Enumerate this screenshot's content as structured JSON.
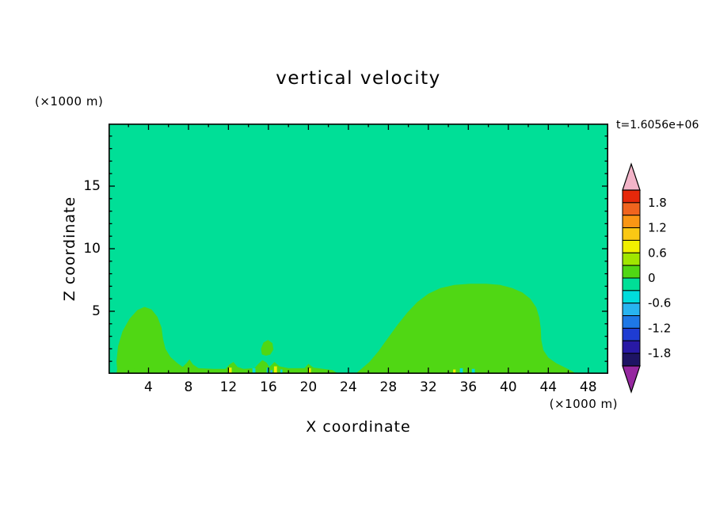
{
  "chart": {
    "title": "vertical velocity",
    "timestamp": "t=1.6056e+06"
  },
  "axes": {
    "x_label": "X coordinate",
    "x_unit": "(×1000 m)",
    "y_label": "Z coordinate",
    "y_unit": "(×1000 m)",
    "x_range": [
      0,
      50
    ],
    "y_range": [
      0,
      20
    ],
    "x_ticks": [
      4,
      8,
      12,
      16,
      20,
      24,
      28,
      32,
      36,
      40,
      44,
      48
    ],
    "x_minor_step": 2,
    "y_ticks": [
      5,
      10,
      15
    ],
    "y_minor_step": 1
  },
  "colorbar": {
    "labels": [
      "1.8",
      "1.2",
      "0.6",
      "0",
      "-0.6",
      "-1.2",
      "-1.8"
    ],
    "level_step": 0.3,
    "levels_top_to_bottom": [
      2.1,
      1.8,
      1.5,
      1.2,
      0.9,
      0.6,
      0.3,
      0,
      -0.3,
      -0.6,
      -0.9,
      -1.2,
      -1.5,
      -1.8,
      -2.1
    ],
    "band_colors_top_to_bottom": [
      "#E6280A",
      "#F0641E",
      "#FA9614",
      "#FAC814",
      "#F0F000",
      "#A0E600",
      "#50D714",
      "#00DF97",
      "#00DCDC",
      "#28B4F0",
      "#1E78E6",
      "#1E3CD2",
      "#2819A5",
      "#1E1464"
    ],
    "cap_top_color": "#F2B4C8",
    "cap_bottom_color": "#9628A0"
  },
  "chart_data": {
    "type": "heatmap",
    "subtype": "filled-contour",
    "title": "vertical velocity",
    "xlabel": "X coordinate (×1000 m)",
    "ylabel": "Z coordinate (×1000 m)",
    "x_range": [
      0,
      50
    ],
    "y_range": [
      0,
      20
    ],
    "contour_interval": 0.3,
    "background_level": [
      -0.3,
      0
    ],
    "background_color": "#00DF97",
    "regions": [
      {
        "name": "left-updraft-dome",
        "level": [
          0,
          0.3
        ],
        "color": "#50D714",
        "points": [
          [
            0.9,
            0.0
          ],
          [
            0.8,
            1.0
          ],
          [
            0.95,
            2.2
          ],
          [
            1.4,
            3.4
          ],
          [
            2.1,
            4.4
          ],
          [
            2.9,
            5.1
          ],
          [
            3.6,
            5.35
          ],
          [
            4.3,
            5.15
          ],
          [
            4.9,
            4.55
          ],
          [
            5.3,
            3.7
          ],
          [
            5.45,
            2.8
          ],
          [
            5.7,
            2.0
          ],
          [
            6.2,
            1.35
          ],
          [
            6.9,
            0.85
          ],
          [
            7.7,
            0.4
          ],
          [
            8.3,
            0.0
          ]
        ]
      },
      {
        "name": "ground-strip",
        "level": [
          0,
          0.3
        ],
        "color": "#50D714",
        "points": [
          [
            0.8,
            0.0
          ],
          [
            0.85,
            0.35
          ],
          [
            3.0,
            0.4
          ],
          [
            5.0,
            0.35
          ],
          [
            7.2,
            0.4
          ],
          [
            7.8,
            0.85
          ],
          [
            8.1,
            1.15
          ],
          [
            8.45,
            0.75
          ],
          [
            9.0,
            0.45
          ],
          [
            10.5,
            0.4
          ],
          [
            11.7,
            0.4
          ],
          [
            12.1,
            0.75
          ],
          [
            12.5,
            0.95
          ],
          [
            12.9,
            0.55
          ],
          [
            13.5,
            0.4
          ],
          [
            14.6,
            0.45
          ],
          [
            15.0,
            0.8
          ],
          [
            15.4,
            1.1
          ],
          [
            15.8,
            0.9
          ],
          [
            16.1,
            0.55
          ],
          [
            16.6,
            0.95
          ],
          [
            17.1,
            0.6
          ],
          [
            18.0,
            0.45
          ],
          [
            19.6,
            0.45
          ],
          [
            20.0,
            0.8
          ],
          [
            20.5,
            0.5
          ],
          [
            21.5,
            0.4
          ],
          [
            22.4,
            0.3
          ],
          [
            23.0,
            0.0
          ]
        ]
      },
      {
        "name": "small-detached-blob",
        "level": [
          0,
          0.3
        ],
        "color": "#50D714",
        "points": [
          [
            15.35,
            1.55
          ],
          [
            15.25,
            2.0
          ],
          [
            15.5,
            2.5
          ],
          [
            15.95,
            2.7
          ],
          [
            16.4,
            2.45
          ],
          [
            16.5,
            1.95
          ],
          [
            16.2,
            1.55
          ],
          [
            15.75,
            1.45
          ]
        ]
      },
      {
        "name": "right-updraft-dome",
        "level": [
          0,
          0.3
        ],
        "color": "#50D714",
        "points": [
          [
            24.7,
            0.0
          ],
          [
            25.3,
            0.4
          ],
          [
            26.1,
            0.95
          ],
          [
            27.0,
            1.8
          ],
          [
            27.9,
            2.8
          ],
          [
            28.9,
            3.9
          ],
          [
            29.9,
            4.9
          ],
          [
            30.9,
            5.75
          ],
          [
            32.0,
            6.4
          ],
          [
            33.2,
            6.85
          ],
          [
            34.6,
            7.1
          ],
          [
            36.2,
            7.2
          ],
          [
            37.8,
            7.2
          ],
          [
            39.2,
            7.1
          ],
          [
            40.4,
            6.85
          ],
          [
            41.4,
            6.5
          ],
          [
            42.2,
            6.0
          ],
          [
            42.8,
            5.3
          ],
          [
            43.1,
            4.5
          ],
          [
            43.25,
            3.6
          ],
          [
            43.3,
            2.7
          ],
          [
            43.5,
            1.9
          ],
          [
            44.0,
            1.3
          ],
          [
            44.8,
            0.85
          ],
          [
            45.7,
            0.5
          ],
          [
            46.4,
            0.2
          ],
          [
            46.8,
            0.0
          ]
        ]
      }
    ],
    "specks": [
      {
        "x": 12.15,
        "w": 0.35,
        "h": 0.5,
        "color": "#F0F000"
      },
      {
        "x": 14.55,
        "w": 0.3,
        "h": 0.45,
        "color": "#00DCDC"
      },
      {
        "x": 15.95,
        "w": 0.25,
        "h": 0.5,
        "color": "#00DCDC"
      },
      {
        "x": 16.3,
        "w": 0.2,
        "h": 0.3,
        "color": "#28B4F0"
      },
      {
        "x": 16.7,
        "w": 0.3,
        "h": 0.6,
        "color": "#F0F000"
      },
      {
        "x": 17.3,
        "w": 0.2,
        "h": 0.35,
        "color": "#00DCDC"
      },
      {
        "x": 20.1,
        "w": 0.3,
        "h": 0.45,
        "color": "#F0F000"
      },
      {
        "x": 34.6,
        "w": 0.25,
        "h": 0.35,
        "color": "#F0F000"
      },
      {
        "x": 35.3,
        "w": 0.3,
        "h": 0.45,
        "color": "#00DCDC"
      },
      {
        "x": 36.5,
        "w": 0.3,
        "h": 0.4,
        "color": "#00DCDC"
      }
    ]
  }
}
